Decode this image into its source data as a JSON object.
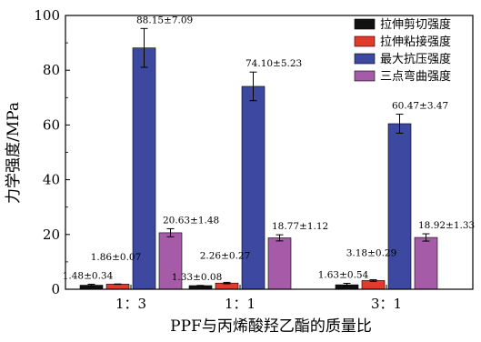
{
  "chart_data": {
    "type": "bar",
    "xlabel": "PPF与丙烯酸羟乙酯的质量比",
    "ylabel": "力学强度/MPa",
    "ylim": [
      0,
      100
    ],
    "yticks": [
      0,
      20,
      40,
      60,
      80,
      100
    ],
    "categories": [
      "1：3",
      "1：1",
      "3：1"
    ],
    "legend_position": "top-right",
    "series": [
      {
        "name": "拉伸剪切强度",
        "color": "#111111",
        "values": [
          1.48,
          1.33,
          1.63
        ],
        "errors": [
          0.34,
          0.08,
          0.54
        ],
        "labels": [
          "1.48±0.34",
          "1.33±0.08",
          "1.63±0.54"
        ]
      },
      {
        "name": "拉伸粘接强度",
        "color": "#e23a2c",
        "values": [
          1.86,
          2.26,
          3.18
        ],
        "errors": [
          0.07,
          0.27,
          0.29
        ],
        "labels": [
          "1.86±0.07",
          "2.26±0.27",
          "3.18±0.29"
        ]
      },
      {
        "name": "最大抗压强度",
        "color": "#3d48a0",
        "values": [
          88.15,
          74.1,
          60.47
        ],
        "errors": [
          7.09,
          5.23,
          3.47
        ],
        "labels": [
          "88.15±7.09",
          "74.10±5.23",
          "60.47±3.47"
        ]
      },
      {
        "name": "三点弯曲强度",
        "color": "#a65ba8",
        "values": [
          20.63,
          18.77,
          18.92
        ],
        "errors": [
          1.48,
          1.12,
          1.33
        ],
        "labels": [
          "20.63±1.48",
          "18.77±1.12",
          "18.92±1.33"
        ]
      }
    ]
  }
}
